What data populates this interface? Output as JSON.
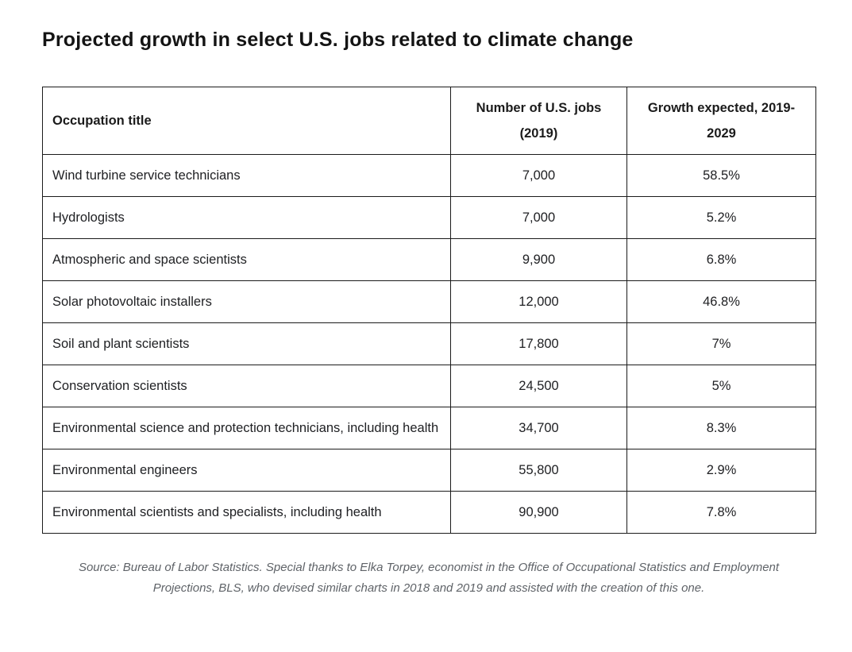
{
  "page": {
    "title": "Projected growth in select U.S. jobs related to climate change"
  },
  "table": {
    "header": {
      "occupation": "Occupation title",
      "jobs_line1": "Number of U.S. jobs",
      "jobs_line2": "(2019)",
      "growth_line1": "Growth expected, 2019-",
      "growth_line2": "2029"
    },
    "rows": [
      {
        "occupation": "Wind turbine service technicians",
        "jobs": "7,000",
        "growth": "58.5%"
      },
      {
        "occupation": "Hydrologists",
        "jobs": "7,000",
        "growth": "5.2%"
      },
      {
        "occupation": "Atmospheric and space scientists",
        "jobs": "9,900",
        "growth": "6.8%"
      },
      {
        "occupation": "Solar photovoltaic installers",
        "jobs": "12,000",
        "growth": "46.8%"
      },
      {
        "occupation": "Soil and plant scientists",
        "jobs": "17,800",
        "growth": "7%"
      },
      {
        "occupation": "Conservation scientists",
        "jobs": "24,500",
        "growth": "5%"
      },
      {
        "occupation": "Environmental science and protection technicians, including health",
        "jobs": "34,700",
        "growth": "8.3%"
      },
      {
        "occupation": "Environmental engineers",
        "jobs": "55,800",
        "growth": "2.9%"
      },
      {
        "occupation": "Environmental scientists and specialists, including health",
        "jobs": "90,900",
        "growth": "7.8%"
      }
    ]
  },
  "source": "Source: Bureau of Labor Statistics. Special thanks to Elka Torpey, economist in the Office of Occupational Statistics and Employment Projections, BLS, who devised similar charts in 2018 and 2019 and assisted with the creation of this one.",
  "colors": {
    "text": "#202124",
    "border": "#1b1b1b",
    "source_text": "#5f6368",
    "background": "#ffffff"
  },
  "chart_data": {
    "type": "table",
    "title": "Projected growth in select U.S. jobs related to climate change",
    "columns": [
      "Occupation title",
      "Number of U.S. jobs (2019)",
      "Growth expected, 2019-2029"
    ],
    "occupations": [
      "Wind turbine service technicians",
      "Hydrologists",
      "Atmospheric and space scientists",
      "Solar photovoltaic installers",
      "Soil and plant scientists",
      "Conservation scientists",
      "Environmental science and protection technicians, including health",
      "Environmental engineers",
      "Environmental scientists and specialists, including health"
    ],
    "jobs_2019": [
      7000,
      7000,
      9900,
      12000,
      17800,
      24500,
      34700,
      55800,
      90900
    ],
    "growth_expected_pct": [
      58.5,
      5.2,
      6.8,
      46.8,
      7,
      5,
      8.3,
      2.9,
      7.8
    ],
    "source_note": "Source: Bureau of Labor Statistics. Special thanks to Elka Torpey, economist in the Office of Occupational Statistics and Employment Projections, BLS, who devised similar charts in 2018 and 2019 and assisted with the creation of this one."
  }
}
